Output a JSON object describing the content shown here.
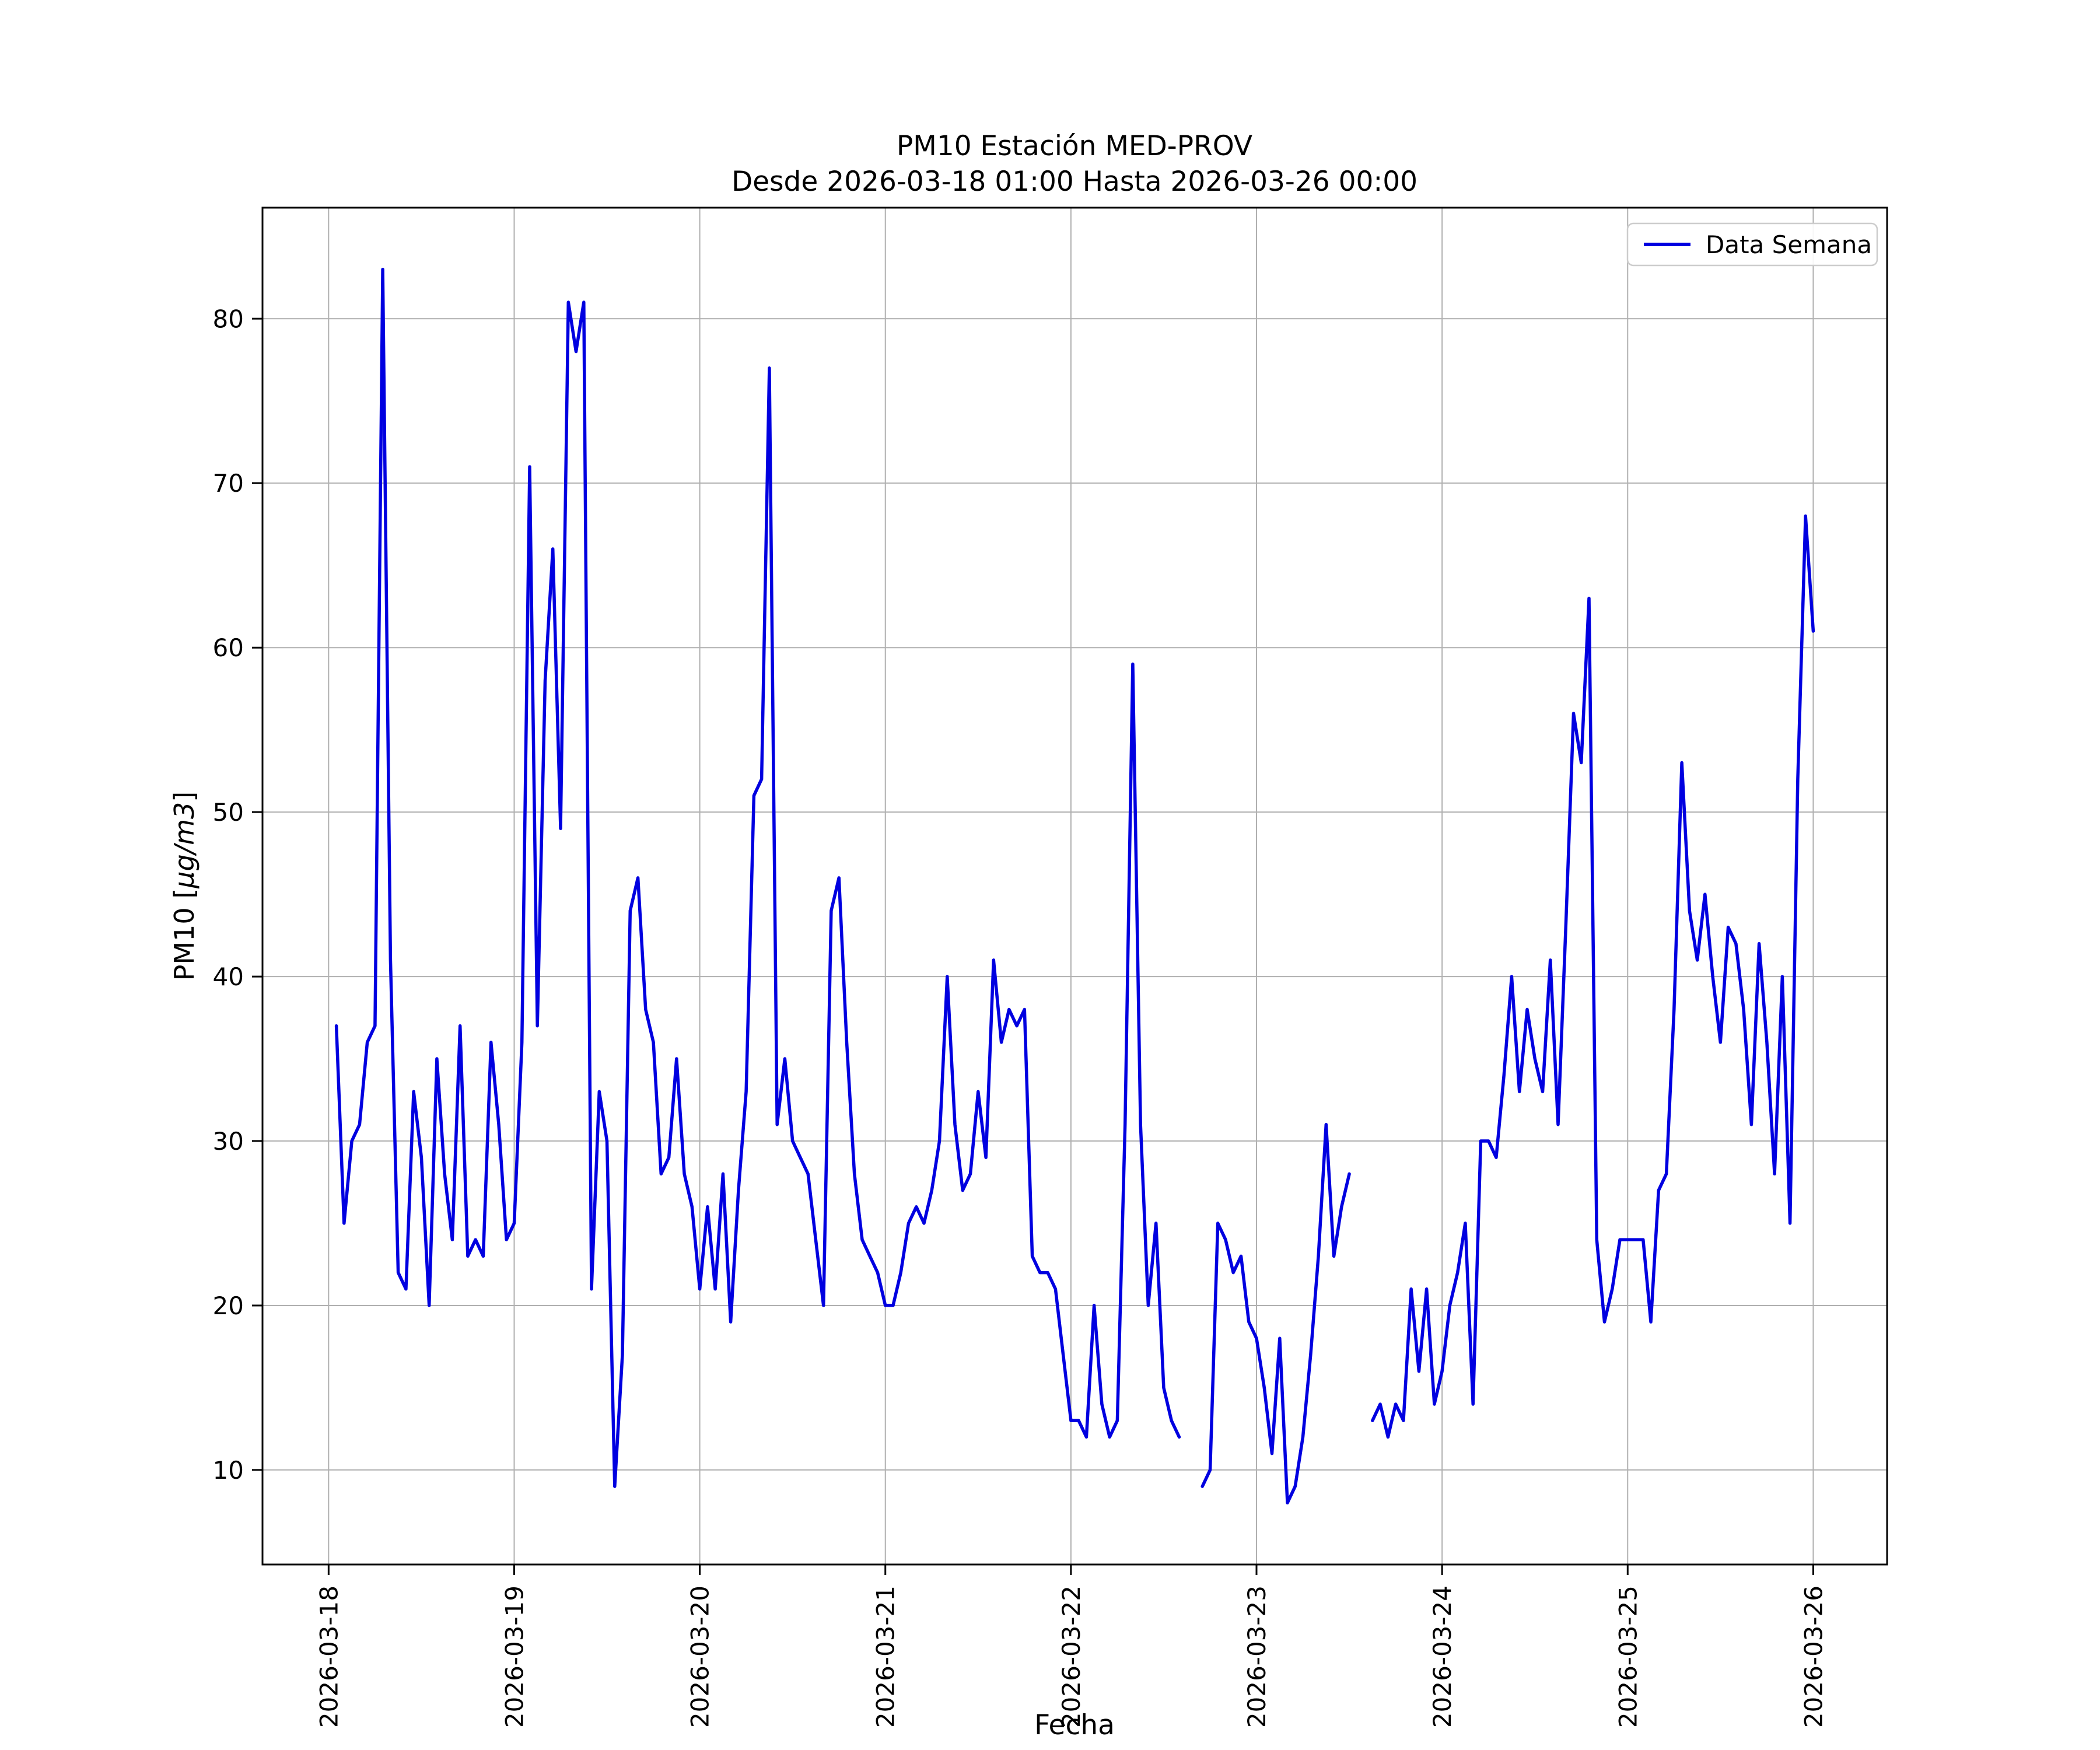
{
  "chart_data": {
    "type": "line",
    "title": "PM10 Estación MED-PROV",
    "subtitle": "Desde 2026-03-18 01:00 Hasta 2026-03-26 00:00",
    "xlabel": "Fecha",
    "ylabel": "PM10 [μg/m3]",
    "ylabel_parts": {
      "prefix": "PM10 [",
      "math": "μg/m3",
      "suffix": "]"
    },
    "station": "MED-PROV",
    "grid": true,
    "grid_color": "#b0b0b0",
    "legend": {
      "label": "Data Semana",
      "position": "upper right"
    },
    "y_ticks": [
      10,
      20,
      30,
      40,
      50,
      60,
      70,
      80
    ],
    "ylim": [
      4.25,
      86.75
    ],
    "xlim_hours": [
      -8.55,
      201.55
    ],
    "x_tick_rotation": 90,
    "x_ticks": [
      {
        "hours": 0,
        "label": "2026-03-18"
      },
      {
        "hours": 24,
        "label": "2026-03-19"
      },
      {
        "hours": 48,
        "label": "2026-03-20"
      },
      {
        "hours": 72,
        "label": "2026-03-21"
      },
      {
        "hours": 96,
        "label": "2026-03-22"
      },
      {
        "hours": 120,
        "label": "2026-03-23"
      },
      {
        "hours": 144,
        "label": "2026-03-24"
      },
      {
        "hours": 168,
        "label": "2026-03-25"
      },
      {
        "hours": 192,
        "label": "2026-03-26"
      }
    ],
    "series": [
      {
        "name": "Data Semana",
        "color": "#0000e0",
        "start": "2026-03-18 01:00",
        "interval_hours": 1,
        "start_hour_offset": 1,
        "values": [
          37,
          25,
          30,
          31,
          36,
          37,
          83,
          41,
          22,
          21,
          33,
          29,
          20,
          35,
          28,
          24,
          37,
          23,
          24,
          23,
          36,
          31,
          24,
          25,
          36,
          71,
          37,
          58,
          66,
          49,
          81,
          78,
          81,
          21,
          33,
          30,
          9,
          17,
          44,
          46,
          38,
          36,
          28,
          29,
          35,
          28,
          26,
          21,
          26,
          21,
          28,
          19,
          27,
          33,
          51,
          52,
          77,
          31,
          35,
          30,
          29,
          28,
          24,
          20,
          44,
          46,
          36,
          28,
          24,
          23,
          22,
          20,
          20,
          22,
          25,
          26,
          25,
          27,
          30,
          40,
          31,
          27,
          28,
          33,
          29,
          41,
          36,
          38,
          37,
          38,
          23,
          22,
          22,
          21,
          17,
          13,
          13,
          12,
          20,
          14,
          12,
          13,
          31,
          59,
          31,
          20,
          25,
          15,
          13,
          12,
          null,
          null,
          9,
          10,
          25,
          24,
          22,
          23,
          19,
          18,
          15,
          11,
          18,
          8,
          9,
          12,
          17,
          23,
          31,
          23,
          26,
          28,
          null,
          null,
          13,
          14,
          12,
          14,
          13,
          21,
          16,
          21,
          14,
          16,
          20,
          22,
          25,
          14,
          30,
          30,
          29,
          34,
          40,
          33,
          38,
          35,
          33,
          41,
          31,
          43,
          56,
          53,
          63,
          24,
          19,
          21,
          24,
          24,
          24,
          24,
          19,
          27,
          28,
          38,
          53,
          44,
          41,
          45,
          40,
          36,
          43,
          42,
          38,
          31,
          42,
          36,
          28,
          40,
          25,
          52,
          68,
          61
        ]
      }
    ]
  }
}
